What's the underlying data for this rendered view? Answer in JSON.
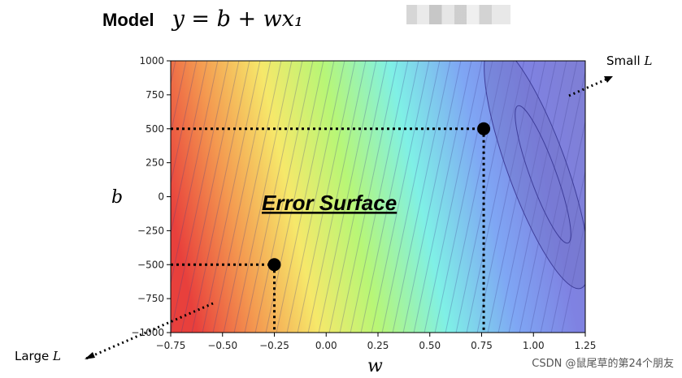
{
  "header": {
    "label": "Model",
    "formula": "y = b + wx₁"
  },
  "chart_data": {
    "type": "heatmap",
    "title": "",
    "overlay_title": "Error Surface",
    "xlabel": "w",
    "ylabel": "b",
    "xlim": [
      -0.75,
      1.25
    ],
    "ylim": [
      -1000,
      1000
    ],
    "x_ticks": [
      "−0.75",
      "−0.50",
      "−0.25",
      "0.00",
      "0.25",
      "0.50",
      "0.75",
      "1.00",
      "1.25"
    ],
    "y_ticks": [
      "1000",
      "750",
      "500",
      "250",
      "0",
      "−250",
      "−500",
      "−750",
      "−1000"
    ],
    "colormap": "jet (red = large loss, blue = small loss)",
    "points": [
      {
        "name": "",
        "w": -0.25,
        "b": -500
      },
      {
        "name": "",
        "w": 0.76,
        "b": 500
      }
    ],
    "annotations": [
      {
        "text": "Large",
        "symbol": "L",
        "placement": "bottom-left"
      },
      {
        "text": "Small",
        "symbol": "L",
        "placement": "top-right"
      }
    ]
  },
  "watermark": "CSDN @鼠尾草的第24个朋友",
  "colors": {
    "high": "#e8403c",
    "mid": "#7ff0e6",
    "low": "#7f7fd6"
  }
}
